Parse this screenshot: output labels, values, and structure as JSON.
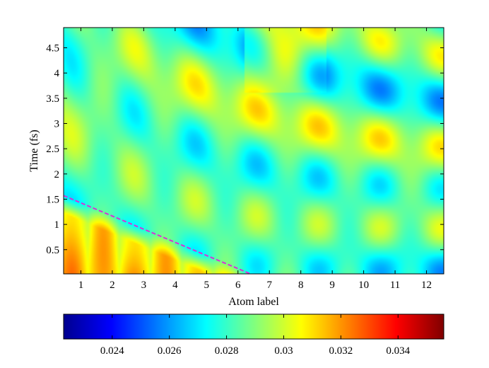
{
  "chart_data": {
    "type": "heatmap",
    "title": "",
    "xlabel": "Atom label",
    "ylabel": "Time (fs)",
    "x_ticks": [
      "1",
      "2",
      "3",
      "4",
      "5",
      "6",
      "7",
      "8",
      "9",
      "10",
      "11",
      "12"
    ],
    "y_ticks": [
      "0.5",
      "1",
      "1.5",
      "2",
      "2.5",
      "3",
      "3.5",
      "4",
      "4.5"
    ],
    "xlim": [
      0.45,
      12.55
    ],
    "ylim": [
      0.02,
      4.9
    ],
    "x_values": [
      1,
      2,
      3,
      4,
      5,
      6,
      7,
      8,
      9,
      10,
      11,
      12
    ],
    "colorbar": {
      "ticks": [
        "0.024",
        "0.026",
        "0.028",
        "0.03",
        "0.032",
        "0.034"
      ],
      "range": [
        0.0223,
        0.0356
      ],
      "colormap": "jet"
    },
    "annotation_line": {
      "color": "#d733d6",
      "style": "dashed",
      "from": [
        0.45,
        1.57
      ],
      "to": [
        6.4,
        0.02
      ]
    },
    "grid": false
  }
}
